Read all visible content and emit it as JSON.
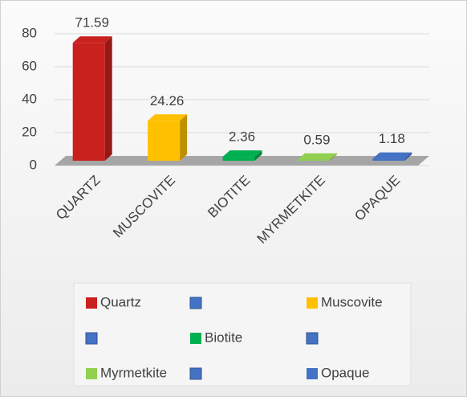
{
  "chart_data": {
    "type": "bar",
    "categories": [
      "QUARTZ",
      "MUSCOVITE",
      "BIOTITE",
      "MYRMETKITE",
      "OPAQUE"
    ],
    "values": [
      71.59,
      24.26,
      2.36,
      0.59,
      1.18
    ],
    "colors": [
      "#c9211e",
      "#ffc000",
      "#00b050",
      "#92d050",
      "#4472c4"
    ],
    "legend": [
      "Quartz",
      "Muscovite",
      "Biotite",
      "Myrmetkite",
      "Opaque"
    ],
    "ylim": [
      0,
      80
    ],
    "yticks": [
      0,
      20,
      40,
      60,
      80
    ],
    "grid": true
  }
}
